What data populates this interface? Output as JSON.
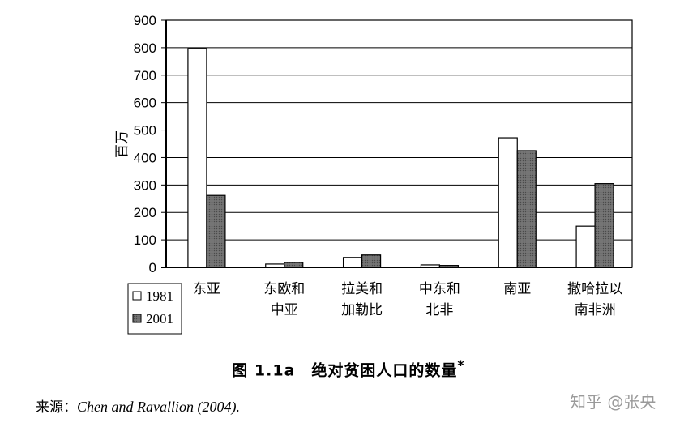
{
  "chart_data": {
    "type": "bar",
    "ylabel": "百万",
    "ylim": [
      0,
      900
    ],
    "yticks": [
      0,
      100,
      200,
      300,
      400,
      500,
      600,
      700,
      800,
      900
    ],
    "categories": [
      [
        "东亚"
      ],
      [
        "东欧和",
        "中亚"
      ],
      [
        "拉美和",
        "加勒比"
      ],
      [
        "中东和",
        "北非"
      ],
      [
        "南亚"
      ],
      [
        "撒哈拉以",
        "南非洲"
      ]
    ],
    "series": [
      {
        "name": "1981",
        "values": [
          797,
          12,
          36,
          9,
          472,
          150
        ],
        "fill": "#ffffff"
      },
      {
        "name": "2001",
        "values": [
          262,
          18,
          45,
          7,
          425,
          305
        ],
        "fill": "#686868"
      }
    ],
    "grid": true,
    "legend": "bottom-left"
  },
  "caption": {
    "text": "图 1.1a　绝对贫困人口的数量",
    "mark": "*"
  },
  "source": {
    "prefix": "来源：",
    "citation": "Chen and Ravallion (2004)",
    "suffix": "."
  },
  "watermark": "知乎 @张央"
}
